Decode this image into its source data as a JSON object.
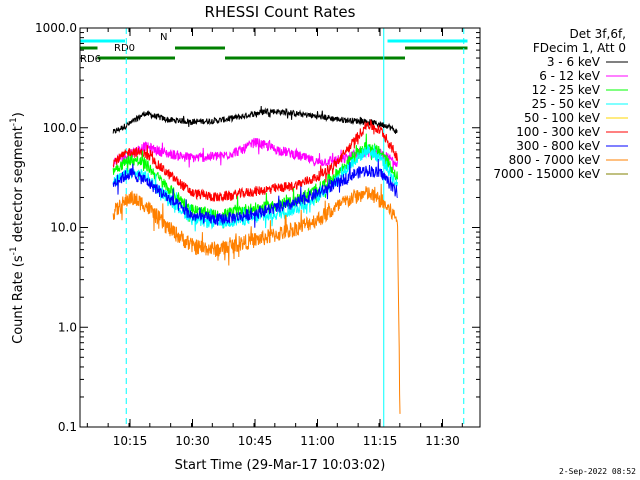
{
  "chart_data": {
    "type": "line",
    "title": "RHESSI Count Rates",
    "xlabel": "Start Time (29-Mar-17 10:03:02)",
    "ylabel_main": "Count Rate (s",
    "ylabel_sup1": "-1",
    "ylabel_mid": " detector segment",
    "ylabel_sup2": "-1",
    "ylabel_end": ")",
    "y_scale": "log",
    "ylim": [
      0.1,
      1000
    ],
    "y_ticks": [
      {
        "value": 0.1,
        "label": "0.1"
      },
      {
        "value": 1,
        "label": "1.0"
      },
      {
        "value": 10,
        "label": "10.0"
      },
      {
        "value": 100,
        "label": "100.0"
      },
      {
        "value": 1000,
        "label": "1000.0"
      }
    ],
    "xlim_minutes": [
      10.05,
      11.65
    ],
    "x_ticks": [
      {
        "value": 10.25,
        "label": "10:15"
      },
      {
        "value": 10.5,
        "label": "10:30"
      },
      {
        "value": 10.75,
        "label": "10:45"
      },
      {
        "value": 11.0,
        "label": "11:00"
      },
      {
        "value": 11.25,
        "label": "11:15"
      },
      {
        "value": 11.5,
        "label": "11:30"
      }
    ],
    "legend": {
      "placement": "right",
      "header": [
        "Det 3f,6f,",
        "FDecim 1, Att 0"
      ],
      "entries": [
        {
          "label": "3 - 6 keV",
          "color": "#000000"
        },
        {
          "label": "6 - 12 keV",
          "color": "#ff00ff"
        },
        {
          "label": "12 - 25 keV",
          "color": "#00ff00"
        },
        {
          "label": "25 - 50 keV",
          "color": "#00ffff"
        },
        {
          "label": "50 - 100 keV",
          "color": "#ffd700"
        },
        {
          "label": "100 - 300 keV",
          "color": "#ff0000"
        },
        {
          "label": "300 - 800 keV",
          "color": "#0000ff"
        },
        {
          "label": "800 - 7000 keV",
          "color": "#ff8000"
        },
        {
          "label": "7000 - 15000 keV",
          "color": "#808000"
        }
      ]
    },
    "series": [
      {
        "name": "3 - 6 keV",
        "color": "#000000",
        "noise": 0.03,
        "points": [
          [
            10.183,
            90
          ],
          [
            10.25,
            110
          ],
          [
            10.31,
            140
          ],
          [
            10.4,
            120
          ],
          [
            10.5,
            115
          ],
          [
            10.6,
            118
          ],
          [
            10.7,
            130
          ],
          [
            10.8,
            148
          ],
          [
            10.9,
            140
          ],
          [
            11.0,
            130
          ],
          [
            11.1,
            120
          ],
          [
            11.2,
            115
          ],
          [
            11.28,
            105
          ],
          [
            11.32,
            90
          ]
        ]
      },
      {
        "name": "6 - 12 keV",
        "color": "#ff00ff",
        "noise": 0.05,
        "points": [
          [
            10.183,
            45
          ],
          [
            10.25,
            55
          ],
          [
            10.31,
            65
          ],
          [
            10.4,
            55
          ],
          [
            10.5,
            50
          ],
          [
            10.62,
            52
          ],
          [
            10.7,
            60
          ],
          [
            10.75,
            72
          ],
          [
            10.82,
            62
          ],
          [
            10.9,
            55
          ],
          [
            11.0,
            45
          ],
          [
            11.1,
            48
          ],
          [
            11.18,
            58
          ],
          [
            11.25,
            55
          ],
          [
            11.32,
            45
          ]
        ]
      },
      {
        "name": "100 - 300 keV",
        "color": "#ff0000",
        "noise": 0.05,
        "points": [
          [
            10.183,
            45
          ],
          [
            10.25,
            58
          ],
          [
            10.31,
            55
          ],
          [
            10.4,
            35
          ],
          [
            10.5,
            22
          ],
          [
            10.6,
            20
          ],
          [
            10.7,
            22
          ],
          [
            10.8,
            24
          ],
          [
            10.9,
            26
          ],
          [
            11.0,
            32
          ],
          [
            11.08,
            45
          ],
          [
            11.14,
            70
          ],
          [
            11.2,
            110
          ],
          [
            11.26,
            90
          ],
          [
            11.32,
            50
          ]
        ]
      },
      {
        "name": "12 - 25 keV",
        "color": "#00ff00",
        "noise": 0.06,
        "points": [
          [
            10.183,
            38
          ],
          [
            10.25,
            48
          ],
          [
            10.31,
            44
          ],
          [
            10.4,
            25
          ],
          [
            10.5,
            15
          ],
          [
            10.6,
            13
          ],
          [
            10.7,
            15
          ],
          [
            10.8,
            16
          ],
          [
            10.9,
            18
          ],
          [
            11.0,
            24
          ],
          [
            11.08,
            35
          ],
          [
            11.14,
            50
          ],
          [
            11.2,
            65
          ],
          [
            11.26,
            55
          ],
          [
            11.32,
            32
          ]
        ]
      },
      {
        "name": "25 - 50 keV",
        "color": "#00ffff",
        "noise": 0.06,
        "points": [
          [
            10.183,
            28
          ],
          [
            10.25,
            36
          ],
          [
            10.31,
            33
          ],
          [
            10.4,
            20
          ],
          [
            10.5,
            12
          ],
          [
            10.6,
            11
          ],
          [
            10.7,
            12
          ],
          [
            10.8,
            13
          ],
          [
            10.9,
            15
          ],
          [
            11.0,
            20
          ],
          [
            11.08,
            30
          ],
          [
            11.14,
            45
          ],
          [
            11.2,
            60
          ],
          [
            11.26,
            48
          ],
          [
            11.32,
            26
          ]
        ]
      },
      {
        "name": "300 - 800 keV",
        "color": "#0000ff",
        "noise": 0.06,
        "points": [
          [
            10.183,
            28
          ],
          [
            10.25,
            35
          ],
          [
            10.31,
            30
          ],
          [
            10.4,
            20
          ],
          [
            10.5,
            13
          ],
          [
            10.6,
            12
          ],
          [
            10.7,
            13
          ],
          [
            10.8,
            15
          ],
          [
            10.9,
            17
          ],
          [
            11.0,
            22
          ],
          [
            11.08,
            28
          ],
          [
            11.14,
            34
          ],
          [
            11.2,
            38
          ],
          [
            11.26,
            34
          ],
          [
            11.32,
            22
          ]
        ]
      },
      {
        "name": "800 - 7000 keV",
        "color": "#ff8000",
        "noise": 0.08,
        "points": [
          [
            10.183,
            14
          ],
          [
            10.25,
            20
          ],
          [
            10.31,
            17
          ],
          [
            10.4,
            10
          ],
          [
            10.5,
            6.5
          ],
          [
            10.6,
            6
          ],
          [
            10.7,
            7
          ],
          [
            10.8,
            8
          ],
          [
            10.9,
            9.5
          ],
          [
            11.0,
            12
          ],
          [
            11.08,
            16
          ],
          [
            11.14,
            20
          ],
          [
            11.2,
            22
          ],
          [
            11.26,
            18
          ],
          [
            11.32,
            12
          ],
          [
            11.33,
            0.12
          ]
        ]
      }
    ],
    "attenuator_bars": [
      {
        "label": "N",
        "color": "#00ffff",
        "segments": [
          [
            10.05,
            10.23
          ],
          [
            11.28,
            11.6
          ]
        ]
      },
      {
        "label": "RD0",
        "color": "#008000",
        "segments": [
          [
            10.05,
            10.12
          ],
          [
            10.43,
            10.63
          ],
          [
            11.35,
            11.6
          ]
        ]
      },
      {
        "label": "RD6",
        "color": "#008000",
        "segments": [
          [
            10.12,
            10.43
          ],
          [
            10.63,
            11.35
          ]
        ]
      }
    ],
    "vertical_markers": [
      {
        "x": 10.05,
        "color": "#00ffff",
        "style": "solid"
      },
      {
        "x": 10.235,
        "color": "#00ffff",
        "style": "dashed"
      },
      {
        "x": 11.265,
        "color": "#00ffff",
        "style": "solid"
      },
      {
        "x": 11.585,
        "color": "#00ffff",
        "style": "dashed"
      }
    ]
  },
  "footer_date": "2-Sep-2022 08:52"
}
